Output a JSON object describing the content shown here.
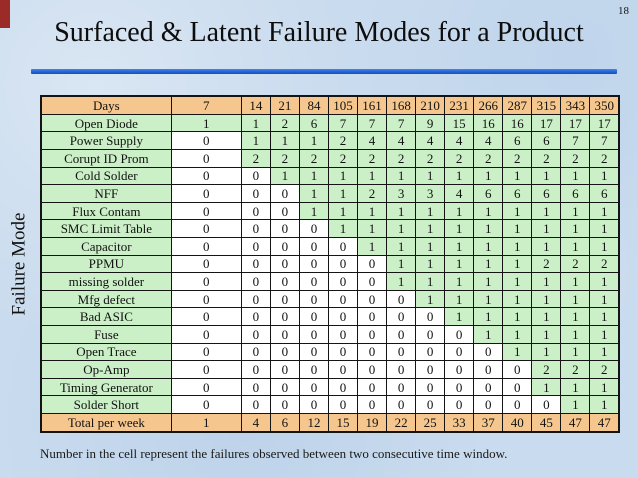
{
  "slide": {
    "page_number": "18",
    "footnote": "Number in the cell represent the failures observed between two consecutive time window."
  },
  "colors": {
    "background": "#C9DBEE",
    "header_bg": "#F5C78E",
    "nonzero_cell_bg": "#CBEFC6",
    "zero_cell_bg": "#FFFFFF",
    "accent_line": "#2263D6",
    "corner_bar": "#9B2B26"
  },
  "chart_data": {
    "type": "table",
    "title": "Surfaced & Latent Failure Modes for a Product",
    "row_axis_label": "Failure Mode",
    "col_header_label": "Days",
    "columns": [
      "7",
      "14",
      "21",
      "84",
      "105",
      "161",
      "168",
      "210",
      "231",
      "266",
      "287",
      "315",
      "343",
      "350"
    ],
    "rows": [
      {
        "label": "Open Diode",
        "values": [
          1,
          1,
          2,
          6,
          7,
          7,
          7,
          9,
          15,
          16,
          16,
          17,
          17,
          17
        ]
      },
      {
        "label": "Power Supply",
        "values": [
          0,
          1,
          1,
          1,
          2,
          4,
          4,
          4,
          4,
          4,
          6,
          6,
          7,
          7
        ]
      },
      {
        "label": "Corupt ID Prom",
        "values": [
          0,
          2,
          2,
          2,
          2,
          2,
          2,
          2,
          2,
          2,
          2,
          2,
          2,
          2
        ]
      },
      {
        "label": "Cold Solder",
        "values": [
          0,
          0,
          1,
          1,
          1,
          1,
          1,
          1,
          1,
          1,
          1,
          1,
          1,
          1
        ]
      },
      {
        "label": "NFF",
        "values": [
          0,
          0,
          0,
          1,
          1,
          2,
          3,
          3,
          4,
          6,
          6,
          6,
          6,
          6
        ]
      },
      {
        "label": "Flux Contam",
        "values": [
          0,
          0,
          0,
          1,
          1,
          1,
          1,
          1,
          1,
          1,
          1,
          1,
          1,
          1
        ]
      },
      {
        "label": "SMC Limit Table",
        "values": [
          0,
          0,
          0,
          0,
          1,
          1,
          1,
          1,
          1,
          1,
          1,
          1,
          1,
          1
        ]
      },
      {
        "label": "Capacitor",
        "values": [
          0,
          0,
          0,
          0,
          0,
          1,
          1,
          1,
          1,
          1,
          1,
          1,
          1,
          1
        ]
      },
      {
        "label": "PPMU",
        "values": [
          0,
          0,
          0,
          0,
          0,
          0,
          1,
          1,
          1,
          1,
          1,
          2,
          2,
          2
        ]
      },
      {
        "label": "missing solder",
        "values": [
          0,
          0,
          0,
          0,
          0,
          0,
          1,
          1,
          1,
          1,
          1,
          1,
          1,
          1
        ]
      },
      {
        "label": "Mfg defect",
        "values": [
          0,
          0,
          0,
          0,
          0,
          0,
          0,
          1,
          1,
          1,
          1,
          1,
          1,
          1
        ]
      },
      {
        "label": "Bad ASIC",
        "values": [
          0,
          0,
          0,
          0,
          0,
          0,
          0,
          0,
          1,
          1,
          1,
          1,
          1,
          1
        ]
      },
      {
        "label": "Fuse",
        "values": [
          0,
          0,
          0,
          0,
          0,
          0,
          0,
          0,
          0,
          1,
          1,
          1,
          1,
          1
        ]
      },
      {
        "label": "Open Trace",
        "values": [
          0,
          0,
          0,
          0,
          0,
          0,
          0,
          0,
          0,
          0,
          1,
          1,
          1,
          1
        ]
      },
      {
        "label": "Op-Amp",
        "values": [
          0,
          0,
          0,
          0,
          0,
          0,
          0,
          0,
          0,
          0,
          0,
          2,
          2,
          2
        ]
      },
      {
        "label": "Timing Generator",
        "values": [
          0,
          0,
          0,
          0,
          0,
          0,
          0,
          0,
          0,
          0,
          0,
          1,
          1,
          1
        ]
      },
      {
        "label": "Solder Short",
        "values": [
          0,
          0,
          0,
          0,
          0,
          0,
          0,
          0,
          0,
          0,
          0,
          0,
          1,
          1
        ]
      }
    ],
    "total_row": {
      "label": "Total per week",
      "values": [
        1,
        4,
        6,
        12,
        15,
        19,
        22,
        25,
        33,
        37,
        40,
        45,
        47,
        47
      ]
    }
  }
}
